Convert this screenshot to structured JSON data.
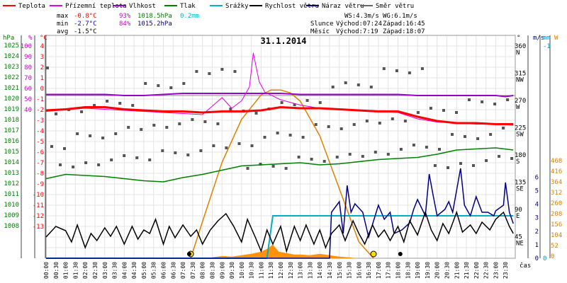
{
  "chart_data": {
    "type": "line",
    "title": "31.1.2014",
    "legend": [
      {
        "name": "Teplota",
        "color": "#ff0000"
      },
      {
        "name": "Přízemní teplota",
        "color": "#e000e0"
      },
      {
        "name": "Vlhkost",
        "color": "#9900cc"
      },
      {
        "name": "Tlak",
        "color": "#008000"
      },
      {
        "name": "Srážky",
        "color": "#00b0c8"
      },
      {
        "name": "Rychlost větru",
        "color": "#000000"
      },
      {
        "name": "Náraz větru",
        "color": "#000080"
      },
      {
        "name": "Směr větru",
        "color": "#666666"
      }
    ],
    "stats": {
      "max": {
        "label": "max",
        "temp": "-0.8°C",
        "hum": "93%",
        "press": "1018.5hPa",
        "rain": "0.2mm"
      },
      "min": {
        "label": "min",
        "temp": "-2.7°C",
        "hum": "84%",
        "press": "1015.2hPa"
      },
      "avg": {
        "label": "avg",
        "temp": "-1.5°C"
      },
      "ws": "WS:4.3m/s",
      "wg": "WG:6.1m/s",
      "sun_label": "Slunce",
      "sunrise": "Východ:07:24",
      "sunset": "Západ:16:45",
      "moon_label": "Měsíc",
      "moonrise": "Východ:7:19",
      "moonset": "Západ:18:07"
    },
    "axes": {
      "hpa_label": "hPa",
      "hum_label": "%",
      "temp_label": "°C",
      "dir_label": "°",
      "ms_label": "m/s",
      "mm_label": "mm",
      "w_label": "W",
      "x_label": "čas",
      "hpa_ticks": [
        "1025",
        "1024",
        "1023",
        "1022",
        "1021",
        "1020",
        "1019",
        "1018",
        "1017",
        "1016",
        "1015",
        "1014",
        "1013",
        "1012",
        "1011",
        "1010",
        "1009",
        "1008"
      ],
      "hum_ticks": [
        "100",
        "90",
        "80",
        "70",
        "60",
        "50",
        "40"
      ],
      "temp_ticks": [
        "4",
        "3",
        "2",
        "1",
        "0",
        "-1",
        "-2",
        "-3",
        "-4",
        "-5",
        "-6",
        "-7",
        "-8",
        "-9",
        "-10",
        "-11",
        "-12",
        "-13"
      ],
      "dir_ticks": [
        {
          "deg": "360",
          "dir": "N"
        },
        {
          "deg": "315",
          "dir": "NW"
        },
        {
          "deg": "270",
          "dir": "W"
        },
        {
          "deg": "225",
          "dir": "SW"
        },
        {
          "deg": "180",
          "dir": "S"
        },
        {
          "deg": "135",
          "dir": "SE"
        },
        {
          "deg": "90",
          "dir": "E"
        },
        {
          "deg": "45",
          "dir": "NE"
        }
      ],
      "ms_ticks": [
        "6",
        "5",
        "4",
        "3",
        "2",
        "1",
        "0"
      ],
      "mm_ticks": [
        "-1",
        "0"
      ],
      "w_ticks": [
        "468",
        "416",
        "364",
        "312",
        "260",
        "208",
        "156",
        "104",
        "52",
        "0"
      ],
      "x_ticks": [
        "00:00",
        "00:30",
        "01:00",
        "01:30",
        "02:00",
        "02:30",
        "03:00",
        "03:30",
        "04:00",
        "04:30",
        "05:00",
        "05:30",
        "06:00",
        "06:30",
        "07:00",
        "07:30",
        "08:00",
        "08:30",
        "09:00",
        "09:30",
        "10:00",
        "10:30",
        "11:00",
        "11:30",
        "12:00",
        "12:30",
        "13:00",
        "13:30",
        "14:00",
        "14:30",
        "15:00",
        "15:30",
        "16:00",
        "16:30",
        "17:00",
        "17:30",
        "18:00",
        "18:30",
        "19:00",
        "19:30",
        "20:00",
        "20:30",
        "21:00",
        "21:30",
        "22:00",
        "22:30",
        "23:00",
        "23:30"
      ]
    },
    "series": [
      {
        "name": "Teplota",
        "unit": "°C",
        "x": [
          0,
          1,
          2,
          3,
          4,
          5,
          6,
          7,
          8,
          9,
          10,
          11,
          12,
          13,
          14,
          15,
          16,
          17,
          18,
          19,
          20,
          21,
          22,
          23,
          23.9
        ],
        "values": [
          -1.4,
          -1.3,
          -1.1,
          -1.1,
          -1.3,
          -1.4,
          -1.5,
          -1.5,
          -1.6,
          -1.5,
          -1.5,
          -1.4,
          -1.1,
          -1.2,
          -1.2,
          -1.3,
          -1.4,
          -1.5,
          -1.5,
          -2.0,
          -2.4,
          -2.6,
          -2.6,
          -2.7,
          -2.7
        ]
      },
      {
        "name": "Přízemní teplota",
        "unit": "°C",
        "x": [
          0,
          2,
          4,
          6,
          8,
          9,
          9.5,
          10,
          10.4,
          10.6,
          10.9,
          11.2,
          12,
          13,
          14,
          15,
          16,
          17,
          18,
          19,
          20,
          21,
          22,
          23,
          23.9
        ],
        "values": [
          -1.5,
          -1.2,
          -1.4,
          -1.6,
          -1.8,
          -0.2,
          -1.2,
          -0.5,
          0.8,
          4.0,
          1.3,
          0.3,
          -0.4,
          -0.9,
          -1.2,
          -1.3,
          -1.4,
          -1.5,
          -1.6,
          -2.2,
          -2.5,
          -2.6,
          -2.7,
          -2.7,
          -2.8
        ]
      },
      {
        "name": "Vlhkost",
        "unit": "%",
        "x": [
          0,
          3,
          4,
          5,
          6,
          7,
          8,
          9,
          10,
          11,
          12,
          13,
          14,
          15,
          16,
          17,
          18,
          19,
          20,
          21,
          22,
          23,
          23.5,
          23.9
        ],
        "values": [
          91,
          91,
          90,
          90,
          91,
          92,
          92,
          92,
          92,
          92,
          92,
          91,
          91,
          91,
          91,
          91,
          91,
          90,
          90,
          90,
          90,
          90,
          89,
          90
        ]
      },
      {
        "name": "Tlak",
        "unit": "hPa",
        "x": [
          0,
          1,
          2,
          3,
          4,
          5,
          6,
          7,
          8,
          9,
          10,
          11,
          12,
          13,
          14,
          15,
          16,
          17,
          18,
          19,
          20,
          21,
          22,
          23,
          23.9
        ],
        "values": [
          1015.5,
          1015.9,
          1015.8,
          1015.7,
          1015.5,
          1015.3,
          1015.2,
          1015.6,
          1015.9,
          1016.3,
          1016.7,
          1016.8,
          1016.9,
          1017.0,
          1016.8,
          1016.9,
          1017.1,
          1017.3,
          1017.4,
          1017.5,
          1017.8,
          1018.2,
          1018.3,
          1018.4,
          1018.2
        ]
      },
      {
        "name": "Rychlost větru",
        "unit": "m/s",
        "x": [
          0,
          1,
          2,
          3,
          4,
          5,
          6,
          7,
          8,
          9,
          10,
          11,
          12,
          13,
          14,
          15,
          16,
          17,
          18,
          19,
          20,
          21,
          22,
          23,
          23.9
        ],
        "values": [
          0.5,
          1.6,
          1.2,
          1.3,
          1.6,
          1.4,
          1.5,
          1.7,
          1.2,
          2.3,
          1.2,
          1.4,
          0.8,
          0.7,
          1.2,
          1.3,
          1.4,
          1.5,
          1.5,
          1.5,
          2.0,
          1.5,
          1.5,
          2.5,
          1.3
        ]
      },
      {
        "name": "Náraz větru",
        "unit": "m/s",
        "x": [
          0,
          14,
          15,
          15.5,
          16,
          17,
          18,
          19,
          19.5,
          20,
          20.5,
          21,
          22,
          23,
          23.5,
          23.9
        ],
        "values": [
          0,
          0,
          0,
          3.3,
          2.6,
          2.6,
          2.4,
          2.7,
          4.1,
          2.5,
          2.1,
          3.2,
          2.2,
          2.6,
          3.5,
          2.2
        ]
      },
      {
        "name": "Srážky",
        "unit": "mm",
        "x": [
          0,
          11.3,
          11.5,
          11.6,
          23.9
        ],
        "values": [
          0,
          0,
          0.1,
          0.2,
          0.2
        ]
      },
      {
        "name": "Sluneční záření",
        "unit": "W",
        "x": [
          7.4,
          8,
          9,
          10,
          11,
          11.5,
          12,
          12.5,
          13,
          14,
          15,
          16,
          16.75
        ],
        "values": [
          0,
          90,
          235,
          340,
          400,
          412,
          412,
          405,
          385,
          300,
          170,
          40,
          0
        ]
      }
    ]
  }
}
